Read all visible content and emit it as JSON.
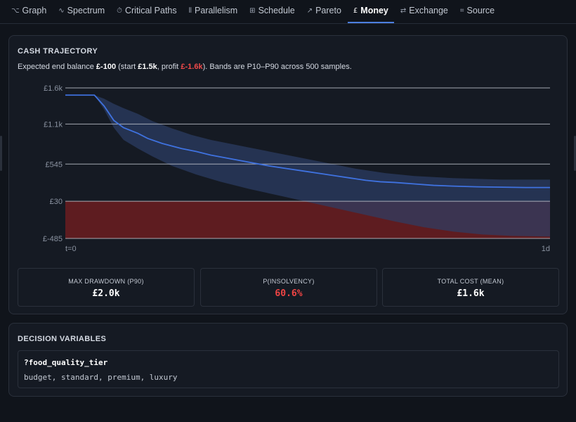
{
  "tabs": [
    {
      "icon": "⌥",
      "label": "Graph",
      "active": false
    },
    {
      "icon": "∿",
      "label": "Spectrum",
      "active": false
    },
    {
      "icon": "⏱",
      "label": "Critical Paths",
      "active": false
    },
    {
      "icon": "⦀",
      "label": "Parallelism",
      "active": false
    },
    {
      "icon": "⊞",
      "label": "Schedule",
      "active": false
    },
    {
      "icon": "↗",
      "label": "Pareto",
      "active": false
    },
    {
      "icon": "£",
      "label": "Money",
      "active": true
    },
    {
      "icon": "⇄",
      "label": "Exchange",
      "active": false
    },
    {
      "icon": "⌗",
      "label": "Source",
      "active": false
    }
  ],
  "cash": {
    "title": "CASH TRAJECTORY",
    "desc_pre": "Expected end balance ",
    "end_balance": "£-100",
    "desc_mid1": " (start ",
    "start": "£1.5k",
    "desc_mid2": ", profit ",
    "profit": "£-1.6k",
    "desc_post": "). Bands are P10–P90 across 500 samples."
  },
  "chart_data": {
    "type": "area",
    "y_ticks": [
      {
        "label": "£1.6k",
        "value": 1600
      },
      {
        "label": "£1.1k",
        "value": 1100
      },
      {
        "label": "£545",
        "value": 545
      },
      {
        "label": "£30",
        "value": 30
      },
      {
        "label": "£-485",
        "value": -485
      }
    ],
    "ylim": [
      -485,
      1600
    ],
    "xlim": [
      0,
      1
    ],
    "x_labels": {
      "start": "t=0",
      "end": "1d"
    },
    "grid": true,
    "insolvency_threshold": 30,
    "colors": {
      "median": "#3f72e0",
      "band": "#2c3e66",
      "insolvency": "#8a1e1e",
      "grid": "#c8ccd4"
    },
    "median": [
      [
        0,
        1500
      ],
      [
        0.06,
        1500
      ],
      [
        0.08,
        1350
      ],
      [
        0.1,
        1150
      ],
      [
        0.12,
        1050
      ],
      [
        0.15,
        970
      ],
      [
        0.17,
        900
      ],
      [
        0.2,
        830
      ],
      [
        0.24,
        760
      ],
      [
        0.27,
        720
      ],
      [
        0.3,
        670
      ],
      [
        0.34,
        620
      ],
      [
        0.38,
        570
      ],
      [
        0.42,
        520
      ],
      [
        0.46,
        480
      ],
      [
        0.5,
        440
      ],
      [
        0.53,
        410
      ],
      [
        0.56,
        380
      ],
      [
        0.59,
        350
      ],
      [
        0.62,
        320
      ],
      [
        0.65,
        300
      ],
      [
        0.68,
        290
      ],
      [
        0.72,
        270
      ],
      [
        0.76,
        250
      ],
      [
        0.8,
        240
      ],
      [
        0.85,
        230
      ],
      [
        0.9,
        225
      ],
      [
        0.95,
        220
      ],
      [
        1.0,
        220
      ]
    ],
    "p90": [
      [
        0,
        1500
      ],
      [
        0.06,
        1500
      ],
      [
        0.08,
        1450
      ],
      [
        0.1,
        1380
      ],
      [
        0.12,
        1320
      ],
      [
        0.15,
        1240
      ],
      [
        0.18,
        1140
      ],
      [
        0.22,
        1040
      ],
      [
        0.26,
        950
      ],
      [
        0.3,
        880
      ],
      [
        0.36,
        800
      ],
      [
        0.42,
        720
      ],
      [
        0.48,
        640
      ],
      [
        0.54,
        560
      ],
      [
        0.6,
        480
      ],
      [
        0.66,
        420
      ],
      [
        0.72,
        380
      ],
      [
        0.8,
        350
      ],
      [
        0.9,
        330
      ],
      [
        1.0,
        330
      ]
    ],
    "p10": [
      [
        0,
        1500
      ],
      [
        0.06,
        1500
      ],
      [
        0.08,
        1300
      ],
      [
        0.1,
        1050
      ],
      [
        0.12,
        880
      ],
      [
        0.15,
        760
      ],
      [
        0.18,
        650
      ],
      [
        0.22,
        520
      ],
      [
        0.27,
        400
      ],
      [
        0.32,
        300
      ],
      [
        0.38,
        200
      ],
      [
        0.44,
        110
      ],
      [
        0.5,
        20
      ],
      [
        0.56,
        -70
      ],
      [
        0.62,
        -160
      ],
      [
        0.68,
        -250
      ],
      [
        0.74,
        -330
      ],
      [
        0.8,
        -390
      ],
      [
        0.86,
        -430
      ],
      [
        0.92,
        -450
      ],
      [
        1.0,
        -460
      ]
    ]
  },
  "stats": [
    {
      "label": "MAX DRAWDOWN (P90)",
      "value": "£2.0k",
      "bad": false
    },
    {
      "label": "P(INSOLVENCY)",
      "value": "60.6%",
      "bad": true
    },
    {
      "label": "TOTAL COST (MEAN)",
      "value": "£1.6k",
      "bad": false
    }
  ],
  "decision": {
    "title": "DECISION VARIABLES",
    "var_name": "?food_quality_tier",
    "options": "budget, standard, premium, luxury"
  }
}
